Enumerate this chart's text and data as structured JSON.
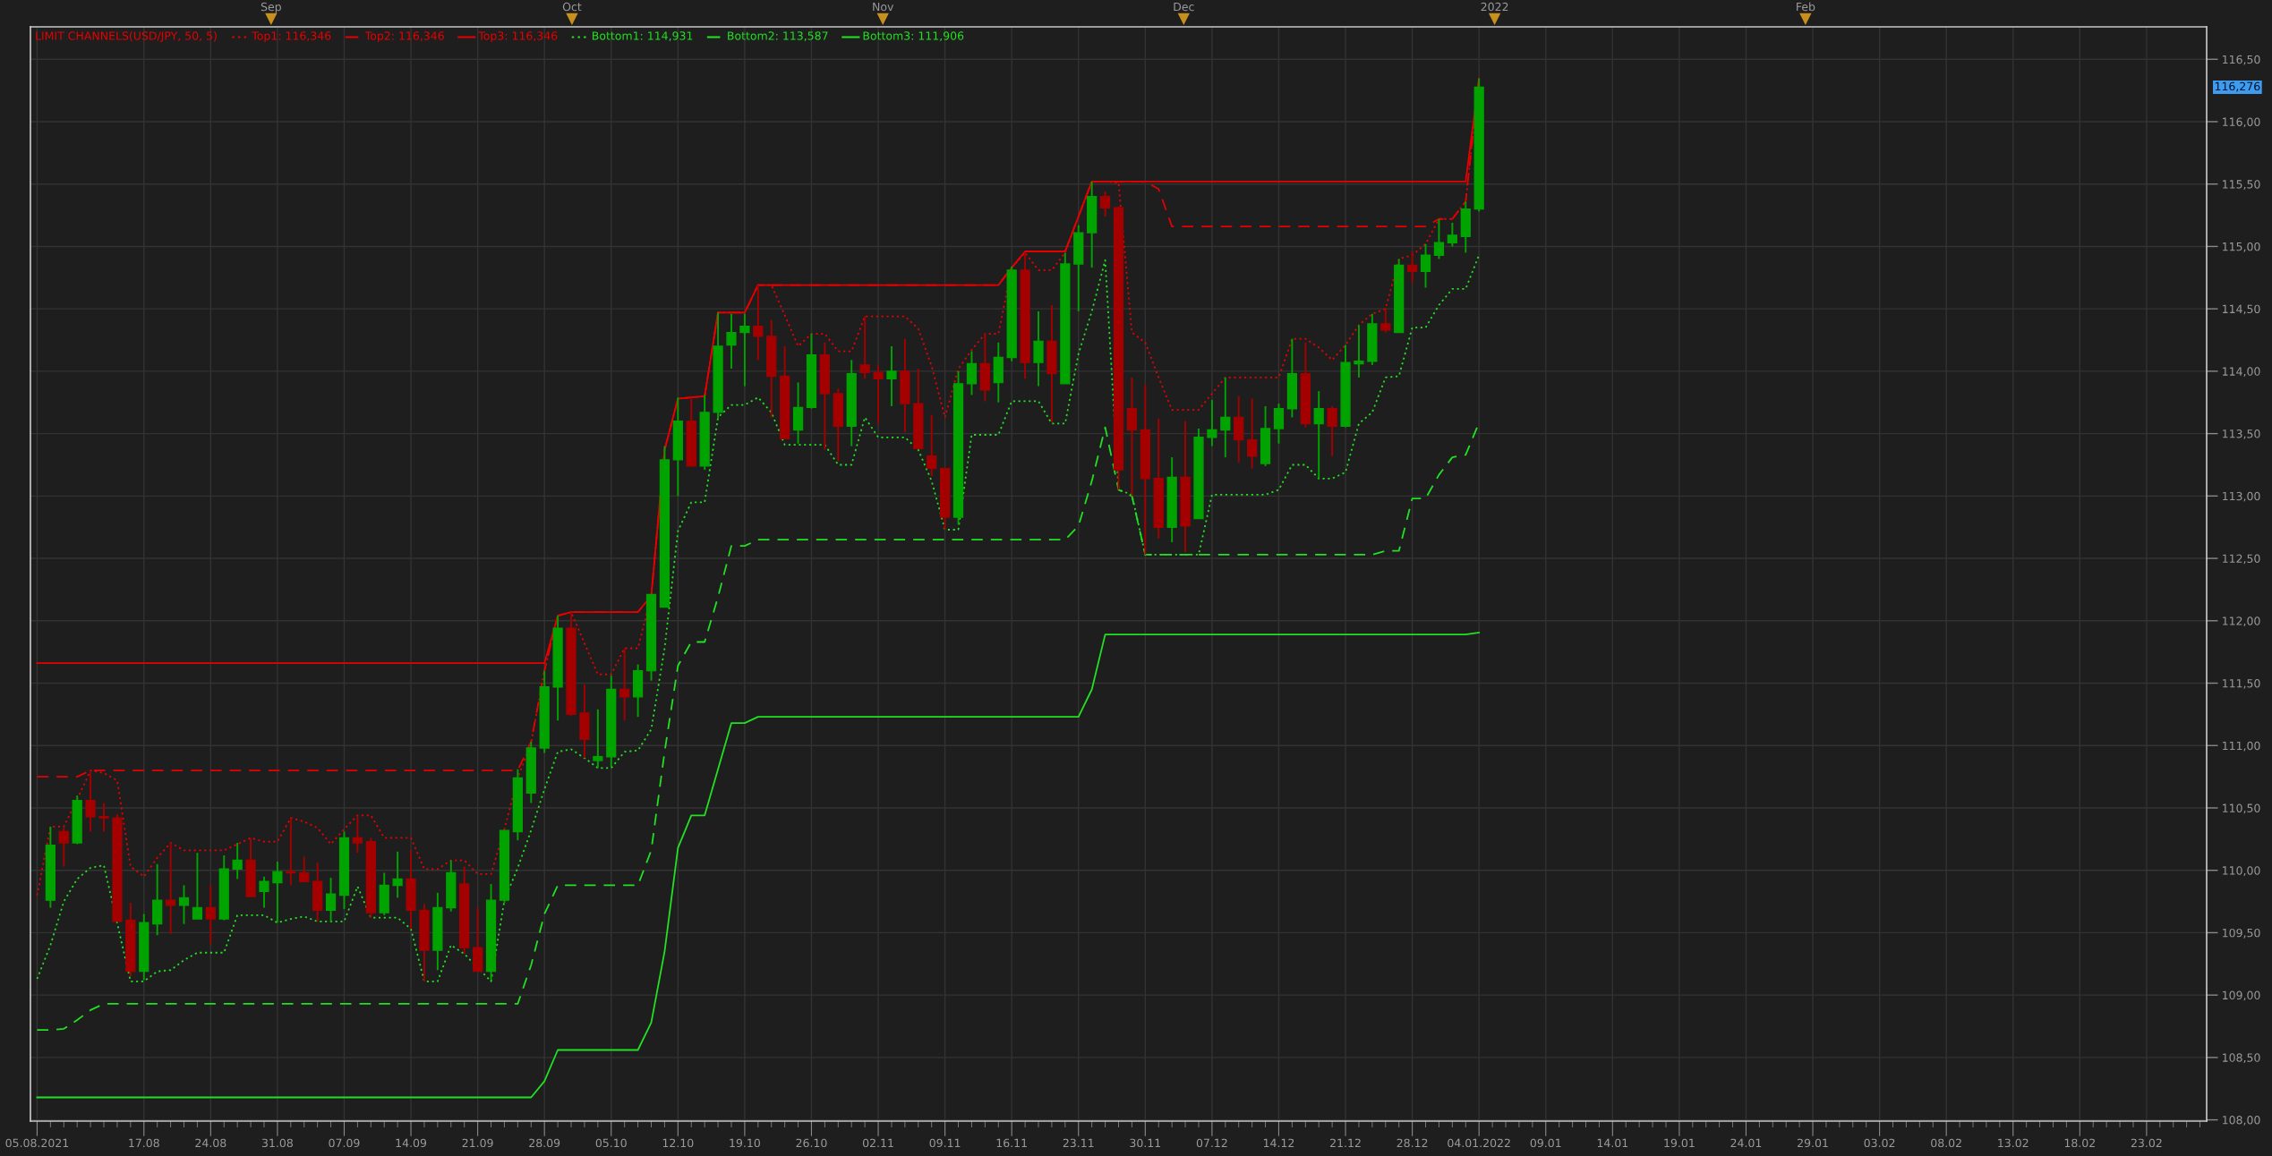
{
  "chart_data": {
    "type": "candlestick",
    "title": "LIMIT CHANNELS(USD/JPY, 50, 5)",
    "categories": [
      "05.08.2021",
      null,
      null,
      null,
      null,
      null,
      null,
      null,
      "17.08",
      null,
      null,
      null,
      null,
      "24.08",
      null,
      null,
      null,
      null,
      "31.08",
      null,
      null,
      null,
      null,
      "07.09",
      null,
      null,
      null,
      null,
      "14.09",
      null,
      null,
      null,
      null,
      "21.09",
      null,
      null,
      null,
      null,
      "28.09",
      null,
      null,
      null,
      null,
      "05.10",
      null,
      null,
      null,
      null,
      "12.10",
      null,
      null,
      null,
      null,
      "19.10",
      null,
      null,
      null,
      null,
      "26.10",
      null,
      null,
      null,
      null,
      "02.11",
      null,
      null,
      null,
      null,
      "09.11",
      null,
      null,
      null,
      null,
      "16.11",
      null,
      null,
      null,
      null,
      "23.11",
      null,
      null,
      null,
      null,
      "30.11",
      null,
      null,
      null,
      null,
      "07.12",
      null,
      null,
      null,
      null,
      "14.12",
      null,
      null,
      null,
      null,
      "21.12",
      null,
      null,
      null,
      null,
      "28.12",
      null,
      null,
      null,
      null,
      "04.01.2022",
      null,
      null,
      null,
      null,
      "09.01",
      null,
      null,
      null,
      null,
      "14.01",
      null,
      null,
      null,
      null,
      "19.01",
      null,
      null,
      null,
      null,
      "24.01",
      null,
      null,
      null,
      null,
      "29.01",
      null,
      null,
      null,
      null,
      "03.02",
      null,
      null,
      null,
      null,
      "08.02",
      null,
      null,
      null,
      null,
      "13.02",
      null,
      null,
      null,
      null,
      "18.02",
      null,
      null,
      null,
      null,
      "23.02",
      null,
      null,
      null,
      null
    ],
    "ohlc": [
      null,
      [
        109.76,
        110.35,
        109.7,
        110.2
      ],
      [
        110.31,
        110.34,
        110.03,
        110.22
      ],
      [
        110.22,
        110.6,
        110.21,
        110.56
      ],
      [
        110.56,
        110.79,
        110.31,
        110.43
      ],
      [
        110.43,
        110.54,
        110.31,
        110.42
      ],
      [
        110.42,
        110.45,
        109.59,
        109.59
      ],
      [
        109.6,
        109.74,
        109.15,
        109.19
      ],
      [
        109.19,
        109.65,
        109.12,
        109.58
      ],
      [
        109.57,
        110.05,
        109.48,
        109.76
      ],
      [
        109.76,
        110.22,
        109.49,
        109.72
      ],
      [
        109.72,
        109.88,
        109.57,
        109.78
      ],
      [
        109.61,
        110.14,
        109.61,
        109.7
      ],
      [
        109.7,
        109.88,
        109.41,
        109.61
      ],
      [
        109.61,
        110.12,
        109.6,
        110.01
      ],
      [
        110.01,
        110.22,
        109.93,
        110.08
      ],
      [
        110.08,
        110.26,
        109.79,
        109.79
      ],
      [
        109.83,
        109.95,
        109.7,
        109.91
      ],
      [
        109.9,
        110.07,
        109.58,
        109.99
      ],
      [
        109.99,
        110.42,
        109.88,
        109.98
      ],
      [
        109.98,
        110.11,
        109.91,
        109.91
      ],
      [
        109.91,
        110.06,
        109.59,
        109.68
      ],
      [
        109.68,
        109.94,
        109.59,
        109.81
      ],
      [
        109.8,
        110.31,
        109.69,
        110.26
      ],
      [
        110.26,
        110.43,
        110.14,
        110.22
      ],
      [
        110.23,
        110.26,
        109.62,
        109.66
      ],
      [
        109.66,
        109.98,
        109.64,
        109.88
      ],
      [
        109.88,
        110.15,
        109.78,
        109.93
      ],
      [
        109.93,
        110.16,
        109.53,
        109.68
      ],
      [
        109.68,
        109.73,
        109.11,
        109.36
      ],
      [
        109.36,
        109.82,
        109.2,
        109.7
      ],
      [
        109.7,
        110.08,
        109.67,
        109.98
      ],
      [
        109.89,
        110.03,
        109.33,
        109.38
      ],
      [
        109.38,
        109.7,
        109.19,
        109.19
      ],
      [
        109.19,
        109.89,
        109.12,
        109.76
      ],
      [
        109.76,
        110.32,
        109.74,
        110.32
      ],
      [
        110.31,
        110.81,
        110.24,
        110.74
      ],
      [
        110.62,
        111.03,
        110.54,
        110.98
      ],
      [
        110.98,
        111.6,
        110.94,
        111.47
      ],
      [
        111.47,
        112.04,
        111.2,
        111.94
      ],
      [
        111.94,
        112.07,
        111.24,
        111.25
      ],
      [
        111.26,
        111.49,
        110.9,
        111.05
      ],
      [
        110.88,
        111.29,
        110.82,
        110.91
      ],
      [
        110.91,
        111.56,
        110.83,
        111.45
      ],
      [
        111.45,
        111.78,
        111.2,
        111.39
      ],
      [
        111.39,
        111.65,
        111.23,
        111.6
      ],
      [
        111.6,
        112.21,
        111.52,
        112.21
      ],
      [
        112.11,
        113.4,
        112.11,
        113.29
      ],
      [
        113.29,
        113.79,
        113.0,
        113.6
      ],
      [
        113.6,
        113.79,
        113.24,
        113.24
      ],
      [
        113.24,
        113.81,
        113.21,
        113.67
      ],
      [
        113.67,
        114.47,
        113.62,
        114.2
      ],
      [
        114.21,
        114.46,
        114.02,
        114.31
      ],
      [
        114.31,
        114.46,
        113.88,
        114.36
      ],
      [
        114.36,
        114.69,
        114.09,
        114.28
      ],
      [
        114.28,
        114.41,
        113.63,
        113.96
      ],
      [
        113.96,
        114.2,
        113.46,
        113.46
      ],
      [
        113.53,
        113.91,
        113.42,
        113.71
      ],
      [
        113.71,
        114.3,
        113.7,
        114.13
      ],
      [
        114.13,
        114.23,
        113.37,
        113.82
      ],
      [
        113.82,
        113.86,
        113.28,
        113.56
      ],
      [
        113.56,
        114.09,
        113.4,
        113.98
      ],
      [
        114.05,
        114.44,
        113.94,
        113.99
      ],
      [
        113.99,
        114.05,
        113.58,
        113.94
      ],
      [
        113.94,
        114.2,
        113.72,
        114.0
      ],
      [
        114.0,
        114.26,
        113.51,
        113.74
      ],
      [
        113.74,
        114.02,
        113.38,
        113.38
      ],
      [
        113.32,
        113.65,
        113.16,
        113.22
      ],
      [
        113.22,
        113.22,
        112.73,
        112.83
      ],
      [
        112.83,
        114.0,
        112.77,
        113.9
      ],
      [
        113.9,
        114.16,
        113.81,
        114.06
      ],
      [
        114.06,
        114.3,
        113.76,
        113.85
      ],
      [
        113.91,
        114.23,
        113.75,
        114.11
      ],
      [
        114.11,
        114.84,
        114.08,
        114.81
      ],
      [
        114.81,
        114.95,
        113.94,
        114.07
      ],
      [
        114.07,
        114.48,
        113.88,
        114.24
      ],
      [
        114.24,
        114.53,
        113.59,
        113.98
      ],
      [
        113.9,
        114.95,
        113.9,
        114.86
      ],
      [
        114.86,
        115.17,
        114.48,
        115.11
      ],
      [
        115.11,
        115.52,
        114.83,
        115.4
      ],
      [
        115.4,
        115.44,
        115.24,
        115.31
      ],
      [
        115.31,
        115.32,
        113.05,
        113.21
      ],
      [
        113.7,
        113.95,
        113.0,
        113.53
      ],
      [
        113.53,
        113.89,
        112.53,
        113.14
      ],
      [
        113.14,
        113.62,
        112.66,
        112.75
      ],
      [
        112.75,
        113.31,
        112.63,
        113.15
      ],
      [
        113.15,
        113.6,
        112.55,
        112.76
      ],
      [
        112.82,
        113.54,
        112.82,
        113.47
      ],
      [
        113.47,
        113.77,
        113.4,
        113.53
      ],
      [
        113.53,
        113.95,
        113.31,
        113.63
      ],
      [
        113.63,
        113.8,
        113.27,
        113.45
      ],
      [
        113.45,
        113.78,
        113.22,
        113.32
      ],
      [
        113.26,
        113.72,
        113.24,
        113.54
      ],
      [
        113.54,
        113.74,
        113.42,
        113.7
      ],
      [
        113.7,
        114.26,
        113.63,
        113.98
      ],
      [
        113.98,
        114.23,
        113.55,
        113.58
      ],
      [
        113.58,
        113.84,
        113.14,
        113.7
      ],
      [
        113.7,
        113.72,
        113.32,
        113.56
      ],
      [
        113.56,
        114.21,
        113.55,
        114.07
      ],
      [
        114.06,
        114.37,
        113.95,
        114.08
      ],
      [
        114.08,
        114.46,
        114.05,
        114.38
      ],
      [
        114.38,
        114.51,
        114.31,
        114.33
      ],
      [
        114.31,
        114.9,
        114.31,
        114.85
      ],
      [
        114.85,
        114.96,
        114.71,
        114.8
      ],
      [
        114.8,
        115.02,
        114.67,
        114.93
      ],
      [
        114.93,
        115.22,
        114.9,
        115.03
      ],
      [
        115.03,
        115.19,
        115.0,
        115.09
      ],
      [
        115.08,
        115.36,
        114.95,
        115.3
      ],
      [
        115.3,
        116.346,
        115.28,
        116.276
      ],
      null,
      null,
      null,
      null,
      null,
      null,
      null,
      null,
      null,
      null,
      null,
      null,
      null,
      null,
      null,
      null,
      null,
      null,
      null,
      null,
      null,
      null,
      null,
      null,
      null,
      null,
      null,
      null,
      null,
      null,
      null,
      null,
      null,
      null,
      null,
      null,
      null,
      null,
      null,
      null,
      null,
      null,
      null,
      null,
      null,
      null,
      null,
      null,
      null,
      null,
      null,
      null,
      null,
      null
    ],
    "colors": [
      null,
      "#00a300",
      "#a50000",
      "#00a300",
      "#a50000",
      "#a50000",
      "#a50000",
      "#a50000",
      "#00a300",
      "#00a300",
      "#a50000",
      "#00a300",
      "#00a300",
      "#a50000",
      "#00a300",
      "#00a300",
      "#a50000",
      "#00a300",
      "#00a300",
      "#a50000",
      "#a50000",
      "#a50000",
      "#00a300",
      "#00a300",
      "#a50000",
      "#a50000",
      "#00a300",
      "#00a300",
      "#a50000",
      "#a50000",
      "#00a300",
      "#00a300",
      "#a50000",
      "#a50000",
      "#00a300",
      "#00a300",
      "#00a300",
      "#00a300",
      "#00a300",
      "#00a300",
      "#a50000",
      "#a50000",
      "#00a300",
      "#00a300",
      "#a50000",
      "#00a300",
      "#00a300",
      "#00a300",
      "#00a300",
      "#a50000",
      "#00a300",
      "#00a300",
      "#00a300",
      "#00a300",
      "#a50000",
      "#a50000",
      "#a50000",
      "#00a300",
      "#00a300",
      "#a50000",
      "#a50000",
      "#00a300",
      "#a50000",
      "#a50000",
      "#00a300",
      "#a50000",
      "#a50000",
      "#a50000",
      "#a50000",
      "#00a300",
      "#00a300",
      "#a50000",
      "#00a300",
      "#00a300",
      "#a50000",
      "#00a300",
      "#a50000",
      "#00a300",
      "#00a300",
      "#00a300",
      "#a50000",
      "#a50000",
      "#a50000",
      "#a50000",
      "#a50000",
      "#00a300",
      "#a50000",
      "#00a300",
      "#00a300",
      "#00a300",
      "#a50000",
      "#a50000",
      "#00a300",
      "#00a300",
      "#00a300",
      "#a50000",
      "#00a300",
      "#a50000",
      "#00a300",
      "#00a300",
      "#00a300",
      "#a50000",
      "#00a300",
      "#a50000",
      "#00a300",
      "#00a300",
      "#00a300",
      "#00a300",
      "#00a300",
      null,
      null,
      null,
      null,
      null,
      null,
      null,
      null,
      null,
      null,
      null,
      null,
      null,
      null,
      null,
      null,
      null,
      null,
      null,
      null,
      null,
      null,
      null,
      null,
      null,
      null,
      null,
      null,
      null,
      null,
      null,
      null,
      null,
      null,
      null,
      null,
      null,
      null,
      null,
      null,
      null,
      null,
      null,
      null,
      null,
      null,
      null,
      null,
      null,
      null,
      null,
      null,
      null,
      null
    ],
    "series": [
      {
        "name": "Top1: 116,346",
        "type": "line",
        "color": "#e60000",
        "line_style": "dotted",
        "values": [
          109.8,
          110.35,
          110.35,
          110.57,
          110.8,
          110.78,
          110.72,
          110.03,
          109.95,
          110.1,
          110.22,
          110.16,
          110.16,
          110.16,
          110.16,
          110.21,
          110.26,
          110.23,
          110.23,
          110.42,
          110.39,
          110.34,
          110.21,
          110.33,
          110.44,
          110.44,
          110.26,
          110.26,
          110.26,
          110.01,
          110.01,
          110.08,
          110.08,
          109.97,
          109.97,
          110.33,
          110.74,
          111.02,
          111.6,
          112.04,
          112.07,
          111.82,
          111.57,
          111.57,
          111.78,
          111.78,
          112.2,
          113.37,
          113.78,
          113.79,
          113.8,
          114.47,
          114.47,
          114.47,
          114.69,
          114.69,
          114.45,
          114.2,
          114.3,
          114.3,
          114.16,
          114.16,
          114.44,
          114.44,
          114.44,
          114.44,
          114.34,
          114.04,
          113.63,
          114.02,
          114.17,
          114.3,
          114.3,
          114.83,
          114.95,
          114.81,
          114.81,
          114.95,
          115.24,
          115.52,
          115.52,
          115.51,
          114.31,
          114.23,
          113.95,
          113.69,
          113.69,
          113.69,
          113.82,
          113.95,
          113.95,
          113.95,
          113.95,
          113.95,
          114.26,
          114.26,
          114.19,
          114.09,
          114.21,
          114.37,
          114.46,
          114.5,
          114.9,
          114.93,
          115.02,
          115.22,
          115.22,
          115.36,
          116.346,
          null,
          null,
          null,
          null,
          null,
          null,
          null,
          null,
          null,
          null,
          null,
          null,
          null,
          null,
          null,
          null,
          null,
          null,
          null,
          null,
          null,
          null,
          null,
          null,
          null,
          null,
          null,
          null,
          null,
          null,
          null,
          null,
          null,
          null,
          null,
          null,
          null,
          null,
          null,
          null,
          null,
          null,
          null,
          null,
          null,
          null,
          null,
          null,
          null,
          null,
          null,
          null,
          null,
          null
        ]
      },
      {
        "name": "Top2: 116,346",
        "type": "line",
        "color": "#e60000",
        "line_style": "dashed",
        "values": [
          110.75,
          110.75,
          110.75,
          110.75,
          110.8,
          110.8,
          110.8,
          110.8,
          110.8,
          110.8,
          110.8,
          110.8,
          110.8,
          110.8,
          110.8,
          110.8,
          110.8,
          110.8,
          110.8,
          110.8,
          110.8,
          110.8,
          110.8,
          110.8,
          110.8,
          110.8,
          110.8,
          110.8,
          110.8,
          110.8,
          110.8,
          110.8,
          110.8,
          110.8,
          110.8,
          110.8,
          110.8,
          111.03,
          111.6,
          112.04,
          112.07,
          112.07,
          112.07,
          112.07,
          112.07,
          112.07,
          112.2,
          113.37,
          113.78,
          113.79,
          113.8,
          114.47,
          114.47,
          114.47,
          114.69,
          114.69,
          114.69,
          114.69,
          114.69,
          114.69,
          114.69,
          114.69,
          114.69,
          114.69,
          114.69,
          114.69,
          114.69,
          114.69,
          114.69,
          114.69,
          114.69,
          114.69,
          114.69,
          114.83,
          114.96,
          114.96,
          114.96,
          114.96,
          115.24,
          115.52,
          115.52,
          115.52,
          115.52,
          115.52,
          115.46,
          115.16,
          115.16,
          115.16,
          115.16,
          115.16,
          115.16,
          115.16,
          115.16,
          115.16,
          115.16,
          115.16,
          115.16,
          115.16,
          115.16,
          115.16,
          115.16,
          115.16,
          115.16,
          115.16,
          115.16,
          115.22,
          115.22,
          115.36,
          116.346,
          null,
          null,
          null,
          null,
          null,
          null,
          null,
          null,
          null,
          null,
          null,
          null,
          null,
          null,
          null,
          null,
          null,
          null,
          null,
          null,
          null,
          null,
          null,
          null,
          null,
          null,
          null,
          null,
          null,
          null,
          null,
          null,
          null,
          null,
          null,
          null,
          null,
          null,
          null,
          null,
          null,
          null,
          null,
          null,
          null,
          null,
          null,
          null,
          null,
          null,
          null,
          null,
          null,
          null
        ]
      },
      {
        "name": "Top3: 116,346",
        "type": "line",
        "color": "#e60000",
        "line_style": "solid",
        "values": [
          111.66,
          111.66,
          111.66,
          111.66,
          111.66,
          111.66,
          111.66,
          111.66,
          111.66,
          111.66,
          111.66,
          111.66,
          111.66,
          111.66,
          111.66,
          111.66,
          111.66,
          111.66,
          111.66,
          111.66,
          111.66,
          111.66,
          111.66,
          111.66,
          111.66,
          111.66,
          111.66,
          111.66,
          111.66,
          111.66,
          111.66,
          111.66,
          111.66,
          111.66,
          111.66,
          111.66,
          111.66,
          111.66,
          111.66,
          112.04,
          112.07,
          112.07,
          112.07,
          112.07,
          112.07,
          112.07,
          112.2,
          113.37,
          113.78,
          113.79,
          113.8,
          114.47,
          114.47,
          114.47,
          114.69,
          114.69,
          114.69,
          114.69,
          114.69,
          114.69,
          114.69,
          114.69,
          114.69,
          114.69,
          114.69,
          114.69,
          114.69,
          114.69,
          114.69,
          114.69,
          114.69,
          114.69,
          114.69,
          114.83,
          114.96,
          114.96,
          114.96,
          114.96,
          115.24,
          115.52,
          115.52,
          115.52,
          115.52,
          115.52,
          115.52,
          115.52,
          115.52,
          115.52,
          115.52,
          115.52,
          115.52,
          115.52,
          115.52,
          115.52,
          115.52,
          115.52,
          115.52,
          115.52,
          115.52,
          115.52,
          115.52,
          115.52,
          115.52,
          115.52,
          115.52,
          115.52,
          115.52,
          115.52,
          116.346,
          null,
          null,
          null,
          null,
          null,
          null,
          null,
          null,
          null,
          null,
          null,
          null,
          null,
          null,
          null,
          null,
          null,
          null,
          null,
          null,
          null,
          null,
          null,
          null,
          null,
          null,
          null,
          null,
          null,
          null,
          null,
          null,
          null,
          null,
          null,
          null,
          null,
          null,
          null,
          null,
          null,
          null,
          null,
          null,
          null,
          null,
          null,
          null,
          null,
          null,
          null,
          null,
          null,
          null
        ]
      },
      {
        "name": "Bottom1: 114,931",
        "type": "line",
        "color": "#22e022",
        "line_style": "dotted",
        "values": [
          109.13,
          109.4,
          109.75,
          109.93,
          110.02,
          110.04,
          null,
          109.11,
          109.11,
          109.19,
          109.2,
          109.28,
          109.34,
          109.34,
          109.34,
          109.64,
          109.64,
          109.64,
          109.58,
          109.61,
          109.63,
          109.59,
          109.59,
          109.59,
          109.87,
          109.62,
          109.62,
          109.62,
          109.53,
          109.11,
          109.11,
          109.4,
          109.33,
          null,
          109.11,
          109.76,
          110.02,
          110.32,
          110.65,
          110.95,
          110.97,
          110.9,
          110.82,
          110.82,
          110.95,
          110.96,
          111.13,
          111.78,
          112.72,
          112.95,
          112.95,
          113.63,
          113.73,
          113.73,
          113.79,
          113.67,
          113.41,
          113.41,
          113.41,
          113.41,
          113.25,
          113.25,
          113.63,
          113.47,
          113.47,
          113.47,
          113.37,
          113.12,
          112.73,
          112.73,
          113.49,
          113.49,
          113.49,
          113.76,
          113.76,
          113.76,
          113.58,
          113.58,
          114.14,
          114.48,
          114.89,
          113.05,
          113.01,
          112.53,
          112.53,
          112.53,
          112.53,
          112.53,
          113.01,
          113.01,
          113.01,
          113.01,
          113.01,
          113.05,
          113.25,
          113.25,
          113.14,
          113.14,
          113.19,
          113.58,
          113.67,
          113.95,
          113.96,
          114.35,
          114.35,
          114.53,
          114.66,
          114.66,
          114.931,
          null,
          null,
          null,
          null,
          null,
          null,
          null,
          null,
          null,
          null,
          null,
          null,
          null,
          null,
          null,
          null,
          null,
          null,
          null,
          null,
          null,
          null,
          null,
          null,
          null,
          null,
          null,
          null,
          null,
          null,
          null,
          null,
          null,
          null,
          null,
          null,
          null,
          null,
          null,
          null,
          null,
          null,
          null,
          null,
          null,
          null,
          null,
          null,
          null,
          null,
          null,
          null,
          null,
          null
        ]
      },
      {
        "name": "Bottom2: 113,587",
        "type": "line",
        "color": "#22e022",
        "line_style": "dashed",
        "values": [
          108.72,
          108.72,
          108.73,
          108.8,
          108.88,
          108.93,
          108.93,
          108.93,
          108.93,
          108.93,
          108.93,
          108.93,
          108.93,
          108.93,
          108.93,
          108.93,
          108.93,
          108.93,
          108.93,
          108.93,
          108.93,
          108.93,
          108.93,
          108.93,
          108.93,
          108.93,
          108.93,
          108.93,
          108.93,
          108.93,
          108.93,
          108.93,
          108.93,
          108.93,
          108.93,
          108.93,
          108.93,
          109.24,
          109.65,
          109.88,
          109.88,
          109.88,
          109.88,
          109.88,
          109.88,
          109.88,
          110.16,
          110.95,
          111.64,
          111.83,
          111.83,
          112.19,
          112.6,
          112.6,
          112.65,
          112.65,
          112.65,
          112.65,
          112.65,
          112.65,
          112.65,
          112.65,
          112.65,
          112.65,
          112.65,
          112.65,
          112.65,
          112.65,
          112.65,
          112.65,
          112.65,
          112.65,
          112.65,
          112.65,
          112.65,
          112.65,
          112.65,
          112.65,
          112.76,
          113.12,
          113.55,
          113.05,
          113.0,
          112.53,
          112.53,
          112.53,
          112.53,
          112.53,
          112.53,
          112.53,
          112.53,
          112.53,
          112.53,
          112.53,
          112.53,
          112.53,
          112.53,
          112.53,
          112.53,
          112.53,
          112.53,
          112.56,
          112.56,
          112.98,
          112.98,
          113.17,
          113.31,
          113.33,
          113.587,
          null,
          null,
          null,
          null,
          null,
          null,
          null,
          null,
          null,
          null,
          null,
          null,
          null,
          null,
          null,
          null,
          null,
          null,
          null,
          null,
          null,
          null,
          null,
          null,
          null,
          null,
          null,
          null,
          null,
          null,
          null,
          null,
          null,
          null,
          null,
          null,
          null,
          null,
          null,
          null,
          null,
          null,
          null,
          null,
          null,
          null,
          null,
          null,
          null,
          null,
          null,
          null,
          null,
          null
        ]
      },
      {
        "name": "Bottom3: 111,906",
        "type": "line",
        "color": "#22e022",
        "line_style": "solid",
        "values": [
          108.18,
          108.18,
          108.18,
          108.18,
          108.18,
          108.18,
          108.18,
          108.18,
          108.18,
          108.18,
          108.18,
          108.18,
          108.18,
          108.18,
          108.18,
          108.18,
          108.18,
          108.18,
          108.18,
          108.18,
          108.18,
          108.18,
          108.18,
          108.18,
          108.18,
          108.18,
          108.18,
          108.18,
          108.18,
          108.18,
          108.18,
          108.18,
          108.18,
          108.18,
          108.18,
          108.18,
          108.18,
          108.18,
          108.31,
          108.56,
          108.56,
          108.56,
          108.56,
          108.56,
          108.56,
          108.56,
          108.78,
          109.35,
          110.18,
          110.44,
          110.44,
          110.81,
          111.18,
          111.18,
          111.23,
          111.23,
          111.23,
          111.23,
          111.23,
          111.23,
          111.23,
          111.23,
          111.23,
          111.23,
          111.23,
          111.23,
          111.23,
          111.23,
          111.23,
          111.23,
          111.23,
          111.23,
          111.23,
          111.23,
          111.23,
          111.23,
          111.23,
          111.23,
          111.23,
          111.45,
          111.89,
          111.89,
          111.89,
          111.89,
          111.89,
          111.89,
          111.89,
          111.89,
          111.89,
          111.89,
          111.89,
          111.89,
          111.89,
          111.89,
          111.89,
          111.89,
          111.89,
          111.89,
          111.89,
          111.89,
          111.89,
          111.89,
          111.89,
          111.89,
          111.89,
          111.89,
          111.89,
          111.89,
          111.906,
          null,
          null,
          null,
          null,
          null,
          null,
          null,
          null,
          null,
          null,
          null,
          null,
          null,
          null,
          null,
          null,
          null,
          null,
          null,
          null,
          null,
          null,
          null,
          null,
          null,
          null,
          null,
          null,
          null,
          null,
          null,
          null,
          null,
          null,
          null,
          null,
          null,
          null,
          null,
          null,
          null,
          null,
          null,
          null,
          null,
          null,
          null,
          null,
          null,
          null,
          null,
          null,
          null,
          null
        ]
      }
    ],
    "x2lim": [
      "2021-08-08",
      "2022-03-13"
    ],
    "x2ticks": [
      {
        "value": "2021-09",
        "label": "Sep"
      },
      {
        "value": "2021-10",
        "label": "Oct"
      },
      {
        "value": "2021-11",
        "label": "Nov"
      },
      {
        "value": "2021-12",
        "label": "Dec"
      },
      {
        "value": "2022-01",
        "label": "2022"
      },
      {
        "value": "2022-02",
        "label": "Feb"
      }
    ],
    "ylim": [
      107.99,
      116.76
    ],
    "yticks": [
      {
        "value": 108,
        "label": "108,00"
      },
      {
        "value": 108.5,
        "label": "108,50"
      },
      {
        "value": 109,
        "label": "109,00"
      },
      {
        "value": 109.5,
        "label": "109,50"
      },
      {
        "value": 110,
        "label": "110,00"
      },
      {
        "value": 110.5,
        "label": "110,50"
      },
      {
        "value": 111,
        "label": "111,00"
      },
      {
        "value": 111.5,
        "label": "111,50"
      },
      {
        "value": 112,
        "label": "112,00"
      },
      {
        "value": 112.5,
        "label": "112,50"
      },
      {
        "value": 113,
        "label": "113,00"
      },
      {
        "value": 113.5,
        "label": "113,50"
      },
      {
        "value": 114,
        "label": "114,00"
      },
      {
        "value": 114.5,
        "label": "114,50"
      },
      {
        "value": 115,
        "label": "115,00"
      },
      {
        "value": 115.5,
        "label": "115,50"
      },
      {
        "value": 116,
        "label": "116,00"
      },
      {
        "value": 116.5,
        "label": "116,50"
      }
    ],
    "grid": true,
    "legend": "top left",
    "annotations": [
      "116,276"
    ]
  }
}
